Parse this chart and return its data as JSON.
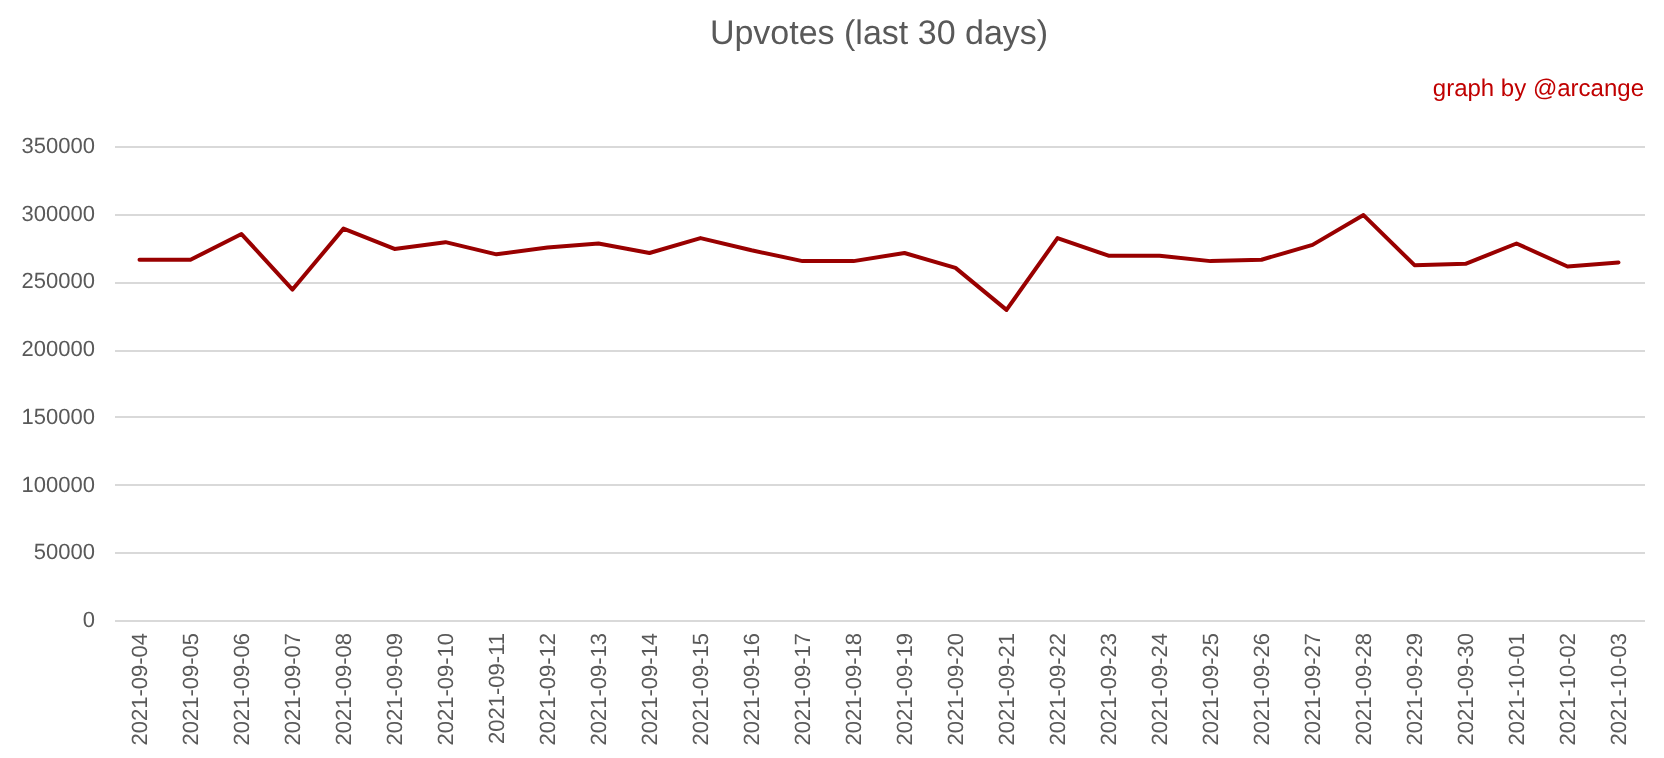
{
  "chart_data": {
    "type": "line",
    "title": "Upvotes (last 30 days)",
    "annotations": [
      "graph by @arcange"
    ],
    "categories": [
      "2021-09-04",
      "2021-09-05",
      "2021-09-06",
      "2021-09-07",
      "2021-09-08",
      "2021-09-09",
      "2021-09-10",
      "2021-09-11",
      "2021-09-12",
      "2021-09-13",
      "2021-09-14",
      "2021-09-15",
      "2021-09-16",
      "2021-09-17",
      "2021-09-18",
      "2021-09-19",
      "2021-09-20",
      "2021-09-21",
      "2021-09-22",
      "2021-09-23",
      "2021-09-24",
      "2021-09-25",
      "2021-09-26",
      "2021-09-27",
      "2021-09-28",
      "2021-09-29",
      "2021-09-30",
      "2021-10-01",
      "2021-10-02",
      "2021-10-03"
    ],
    "series": [
      {
        "color": "#990000",
        "values": [
          266000,
          266000,
          285000,
          244000,
          289000,
          274000,
          279000,
          270000,
          275000,
          278000,
          271000,
          282000,
          273000,
          265000,
          265000,
          271000,
          260000,
          229000,
          282000,
          269000,
          269000,
          265000,
          266000,
          277000,
          299000,
          262000,
          263000,
          278000,
          261000,
          264000
        ]
      }
    ],
    "ylim": [
      0,
      350000
    ],
    "yticks": [
      0,
      50000,
      100000,
      150000,
      200000,
      250000,
      300000,
      350000
    ],
    "grid": "y",
    "marker": "none",
    "line_style": "solid"
  }
}
